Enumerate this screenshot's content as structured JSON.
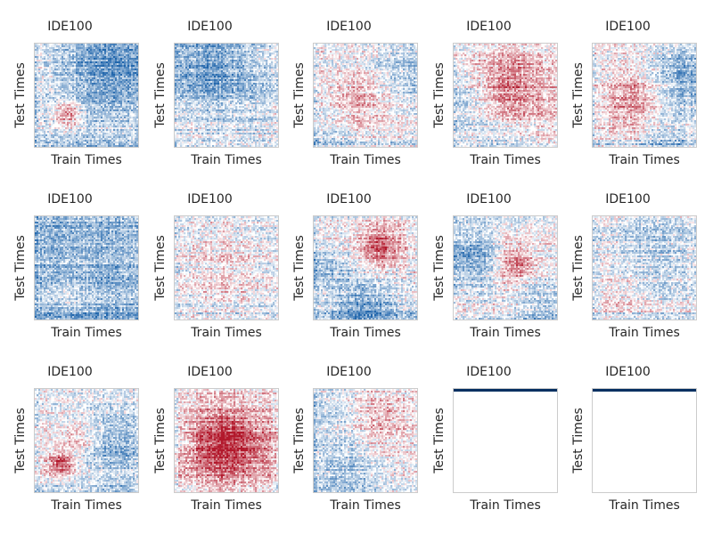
{
  "chart_data": [
    {
      "type": "heatmap",
      "title": "IDE100",
      "xlabel": "Train Times",
      "ylabel": "Test Times",
      "pattern": "blue-top-right-red-lower-left-blob"
    },
    {
      "type": "heatmap",
      "title": "IDE100",
      "xlabel": "Train Times",
      "ylabel": "Test Times",
      "pattern": "mostly-blue-weak"
    },
    {
      "type": "heatmap",
      "title": "IDE100",
      "xlabel": "Train Times",
      "ylabel": "Test Times",
      "pattern": "faint-red-center-blue-edges"
    },
    {
      "type": "heatmap",
      "title": "IDE100",
      "xlabel": "Train Times",
      "ylabel": "Test Times",
      "pattern": "red-upper-band"
    },
    {
      "type": "heatmap",
      "title": "IDE100",
      "xlabel": "Train Times",
      "ylabel": "Test Times",
      "pattern": "red-center-blue-right"
    },
    {
      "type": "heatmap",
      "title": "IDE100",
      "xlabel": "Train Times",
      "ylabel": "Test Times",
      "pattern": "mostly-blue"
    },
    {
      "type": "heatmap",
      "title": "IDE100",
      "xlabel": "Train Times",
      "ylabel": "Test Times",
      "pattern": "faint-mixed"
    },
    {
      "type": "heatmap",
      "title": "IDE100",
      "xlabel": "Train Times",
      "ylabel": "Test Times",
      "pattern": "red-upper-right-blue-bottom"
    },
    {
      "type": "heatmap",
      "title": "IDE100",
      "xlabel": "Train Times",
      "ylabel": "Test Times",
      "pattern": "blue-left-red-center"
    },
    {
      "type": "heatmap",
      "title": "IDE100",
      "xlabel": "Train Times",
      "ylabel": "Test Times",
      "pattern": "faint-blue-mixed"
    },
    {
      "type": "heatmap",
      "title": "IDE100",
      "xlabel": "Train Times",
      "ylabel": "Test Times",
      "pattern": "red-diagonal-blob-blue-right"
    },
    {
      "type": "heatmap",
      "title": "IDE100",
      "xlabel": "Train Times",
      "ylabel": "Test Times",
      "pattern": "strong-red-center"
    },
    {
      "type": "heatmap",
      "title": "IDE100",
      "xlabel": "Train Times",
      "ylabel": "Test Times",
      "pattern": "faint-red-blue-mixed"
    },
    {
      "type": "heatmap",
      "title": "IDE100",
      "xlabel": "Train Times",
      "ylabel": "Test Times",
      "pattern": "empty-top-line"
    },
    {
      "type": "heatmap",
      "title": "IDE100",
      "xlabel": "Train Times",
      "ylabel": "Test Times",
      "pattern": "empty-top-line"
    }
  ],
  "colors": {
    "positive": "#b2182b",
    "negative": "#2166ac",
    "neutral": "#ffffff",
    "border": "#cccccc",
    "line": "#053061"
  }
}
